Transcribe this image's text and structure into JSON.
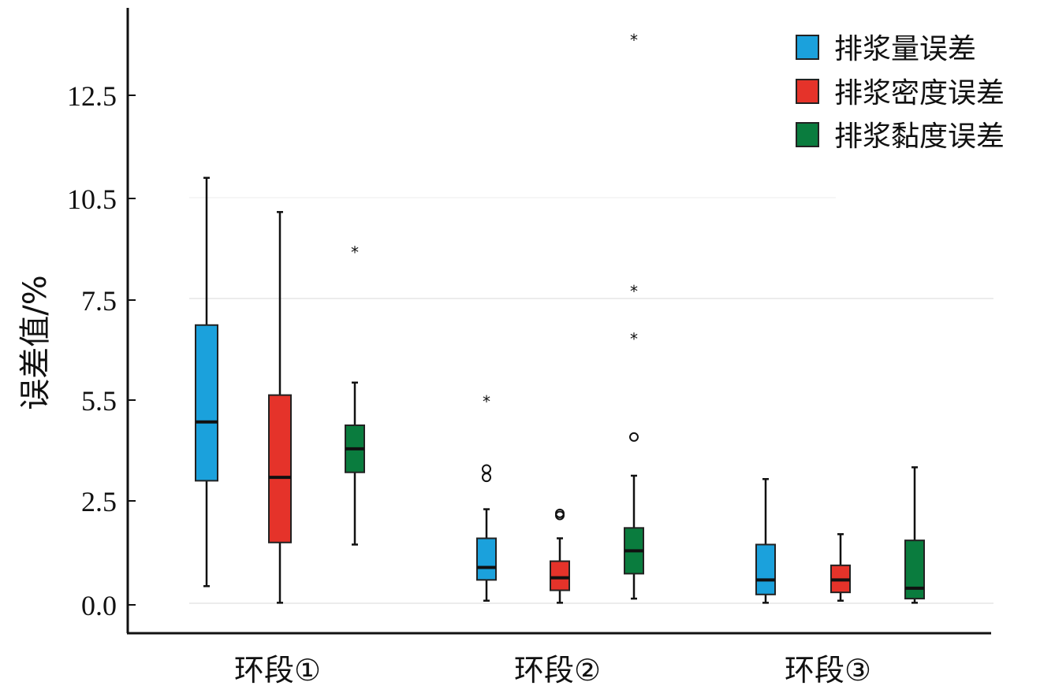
{
  "chart_data": {
    "type": "box",
    "ylabel": "误差值/%",
    "y_ticks": [
      "0.0",
      "2.5",
      "5.5",
      "7.5",
      "10.5",
      "12.5"
    ],
    "categories": [
      "环段①",
      "环段②",
      "环段③"
    ],
    "legend_position": "top-right",
    "series": [
      {
        "name": "排浆量误差",
        "color": "#1ba1dc",
        "boxes": [
          {
            "min": 0.45,
            "q1": 3.1,
            "median": 4.85,
            "q3": 7.0,
            "max": 10.9,
            "outliers": [],
            "extremes": []
          },
          {
            "min": 0.1,
            "q1": 0.6,
            "median": 0.9,
            "q3": 1.6,
            "max": 2.3,
            "outliers": [
              3.2,
              3.45
            ],
            "extremes": [
              5.5
            ]
          },
          {
            "min": 0.05,
            "q1": 0.25,
            "median": 0.6,
            "q3": 1.45,
            "max": 3.15,
            "outliers": [],
            "extremes": []
          }
        ]
      },
      {
        "name": "排浆密度误差",
        "color": "#e5332a",
        "boxes": [
          {
            "min": 0.05,
            "q1": 1.5,
            "median": 3.2,
            "q3": 5.6,
            "max": 10.1,
            "outliers": [],
            "extremes": []
          },
          {
            "min": 0.05,
            "q1": 0.35,
            "median": 0.65,
            "q3": 1.05,
            "max": 1.6,
            "outliers": [
              2.15,
              2.2
            ],
            "extremes": []
          },
          {
            "min": 0.1,
            "q1": 0.3,
            "median": 0.6,
            "q3": 0.95,
            "max": 1.7,
            "outliers": [],
            "extremes": []
          }
        ]
      },
      {
        "name": "排浆黏度误差",
        "color": "#0a7c3e",
        "boxes": [
          {
            "min": 1.45,
            "q1": 3.35,
            "median": 4.05,
            "q3": 4.75,
            "max": 5.85,
            "outliers": [],
            "extremes": [
              8.95
            ]
          },
          {
            "min": 0.15,
            "q1": 0.75,
            "median": 1.3,
            "q3": 1.85,
            "max": 3.25,
            "outliers": [
              4.4
            ],
            "extremes": [
              6.75,
              7.8,
              13.6
            ]
          },
          {
            "min": 0.05,
            "q1": 0.15,
            "median": 0.4,
            "q3": 1.55,
            "max": 3.5,
            "outliers": [],
            "extremes": []
          }
        ]
      }
    ]
  }
}
